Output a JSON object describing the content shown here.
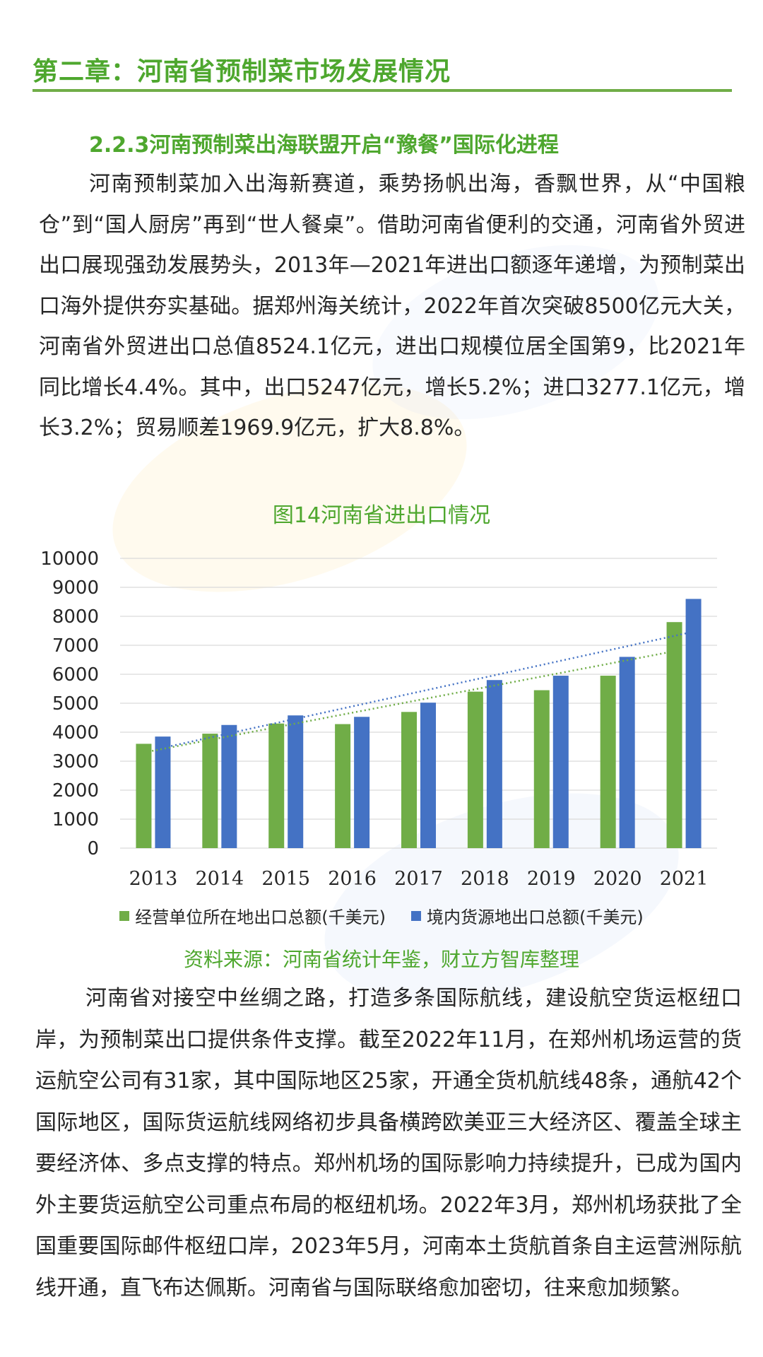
{
  "chapter": {
    "title": "第二章：河南省预制菜市场发展情况"
  },
  "section": {
    "title": "2.2.3河南预制菜出海联盟开启“豫餐”国际化进程"
  },
  "paragraphs": {
    "p1": "河南预制菜加入出海新赛道，乘势扬帆出海，香飘世界，从“中国粮仓”到“国人厨房”再到“世人餐桌”。借助河南省便利的交通，河南省外贸进出口展现强劲发展势头，2013年—2021年进出口额逐年递增，为预制菜出口海外提供夯实基础。据郑州海关统计，2022年首次突破8500亿元大关，河南省外贸进出口总值8524.1亿元，进出口规模位居全国第9，比2021年同比增长4.4%。其中，出口5247亿元，增长5.2%；进口3277.1亿元，增长3.2%；贸易顺差1969.9亿元，扩大8.8%。",
    "p2": "河南省对接空中丝绸之路，打造多条国际航线，建设航空货运枢纽口岸，为预制菜出口提供条件支撑。截至2022年11月，在郑州机场运营的货运航空公司有31家，其中国际地区25家，开通全货机航线48条，通航42个国际地区，国际货运航线网络初步具备横跨欧美亚三大经济区、覆盖全球主要经济体、多点支撑的特点。郑州机场的国际影响力持续提升，已成为国内外主要货运航空公司重点布局的枢纽机场。2022年3月，郑州机场获批了全国重要国际邮件枢纽口岸，2023年5月，河南本土货航首条自主运营洲际航线开通，直飞布达佩斯。河南省与国际联络愈加密切，往来愈加频繁。"
  },
  "chart_data": {
    "type": "bar",
    "title": "图14河南省进出口情况",
    "categories": [
      "2013",
      "2014",
      "2015",
      "2016",
      "2017",
      "2018",
      "2019",
      "2020",
      "2021"
    ],
    "series": [
      {
        "name": "经营单位所在地出口总额(千美元)",
        "color": "#70ad47",
        "values": [
          3600,
          3950,
          4300,
          4280,
          4700,
          5400,
          5450,
          5950,
          7800
        ]
      },
      {
        "name": "境内货源地出口总额(千美元)",
        "color": "#4472c4",
        "values": [
          3850,
          4250,
          4580,
          4530,
          5020,
          5800,
          5950,
          6600,
          8600
        ]
      }
    ],
    "trendlines": "linear, dotted, one per series",
    "ylim": [
      0,
      10000
    ],
    "yticks": [
      "0",
      "1000",
      "2000",
      "3000",
      "4000",
      "5000",
      "6000",
      "7000",
      "8000",
      "9000",
      "10000"
    ],
    "grid": true,
    "legend": "bottom",
    "xlabel": "",
    "ylabel": ""
  },
  "source": {
    "text": "资料来源：河南省统计年鉴，财立方智库整理"
  }
}
